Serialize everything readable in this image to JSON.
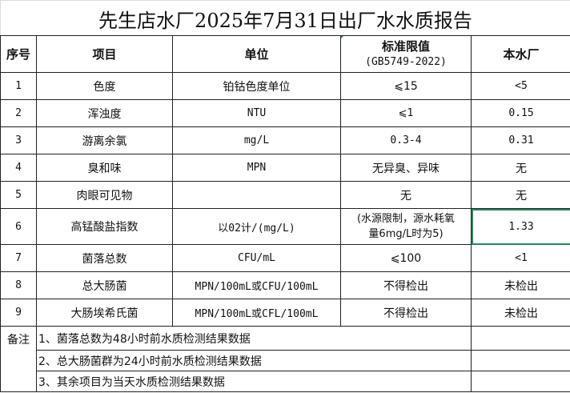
{
  "title": "先生店水厂2025年7月31日出厂水水质报告",
  "headers": {
    "no": "序号",
    "item": "项目",
    "unit": "单位",
    "standard_line1": "标准限值",
    "standard_line2": "(GB5749-2022)",
    "plant": "本水厂"
  },
  "rows": [
    {
      "no": "1",
      "item": "色度",
      "unit": "铂钴色度单位",
      "standard": "⩽15",
      "plant": "<5"
    },
    {
      "no": "2",
      "item": "浑浊度",
      "unit": "NTU",
      "standard": "⩽1",
      "plant": "0.15"
    },
    {
      "no": "3",
      "item": "游离余氯",
      "unit": "mg/L",
      "standard": "0.3-4",
      "plant": "0.31"
    },
    {
      "no": "4",
      "item": "臭和味",
      "unit": "MPN",
      "standard": "无异臭、异味",
      "plant": "无"
    },
    {
      "no": "5",
      "item": "肉眼可见物",
      "unit": "",
      "standard": "无",
      "plant": "无"
    },
    {
      "no": "6",
      "item": "高锰酸盐指数",
      "unit": "以02计/(mg/L)",
      "standard_line1": "(水源限制，源水耗氧",
      "standard_line2": "量6mg/L时为5)",
      "plant": "1.33"
    },
    {
      "no": "7",
      "item": "菌落总数",
      "unit": "CFU/mL",
      "standard": "⩽100",
      "plant": "<1"
    },
    {
      "no": "8",
      "item": "总大肠菌",
      "unit": "MPN/100mL或CFU/100mL",
      "standard": "不得检出",
      "plant": "未检出"
    },
    {
      "no": "9",
      "item": "大肠埃希氏菌",
      "unit": "MPN/100mL或CFL/100mL",
      "standard": "不得检出",
      "plant": "未检出"
    }
  ],
  "notes": {
    "label": "备注",
    "items": [
      "1、菌落总数为48小时前水质检测结果数据",
      "2、总大肠菌群为24小时前水质检测结果数据",
      "3、其余项目为当天水质检测结果数据"
    ]
  },
  "colors": {
    "selection": "#1e8c5a"
  }
}
